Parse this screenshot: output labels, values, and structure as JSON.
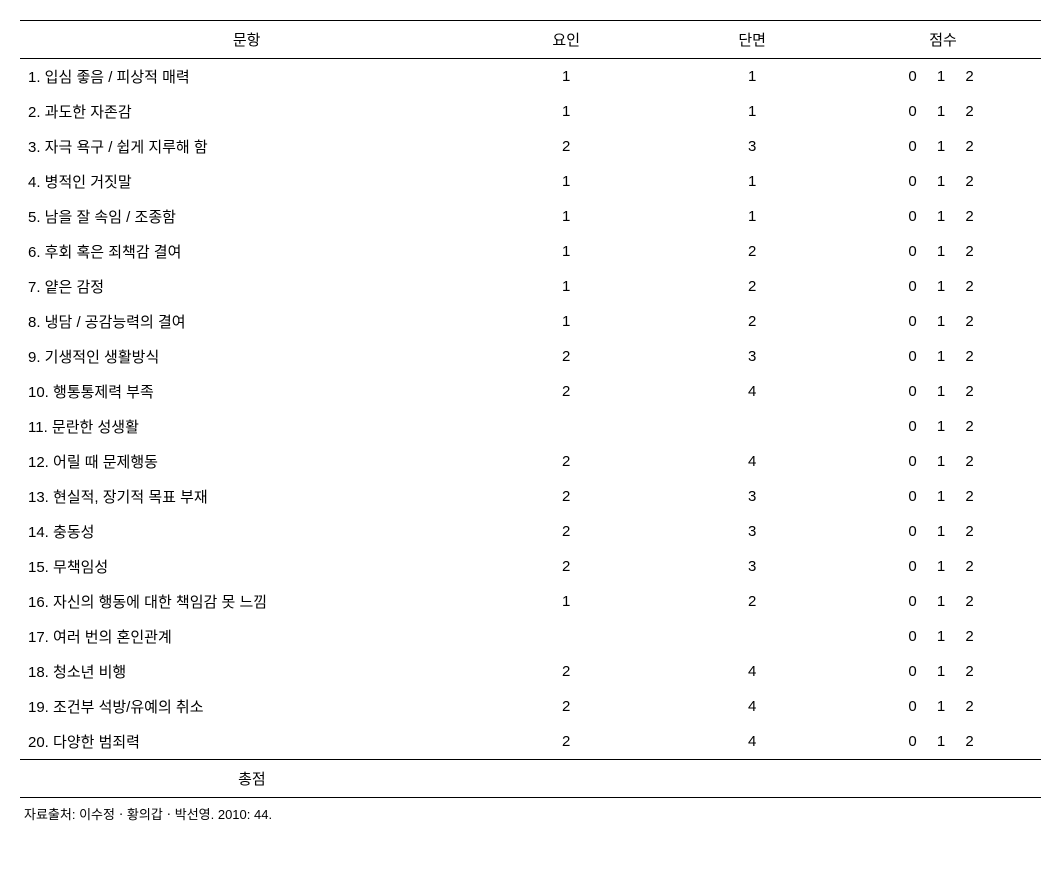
{
  "headers": {
    "item": "문항",
    "factor": "요인",
    "facet": "단면",
    "score": "점수"
  },
  "score_options": "0  1  2",
  "rows": [
    {
      "num": "1.",
      "label": "입심 좋음 / 피상적   매력",
      "factor": "1",
      "facet": "1"
    },
    {
      "num": "2.",
      "label": "과도한 자존감",
      "factor": "1",
      "facet": "1"
    },
    {
      "num": "3.",
      "label": "자극 욕구 / 쉽게   지루해 함",
      "factor": "2",
      "facet": "3"
    },
    {
      "num": "4.",
      "label": "병적인 거짓말",
      "factor": "1",
      "facet": "1"
    },
    {
      "num": "5.",
      "label": "남을 잘 속임 /   조종함",
      "factor": "1",
      "facet": "1"
    },
    {
      "num": "6.",
      "label": "후회 혹은 죄책감   결여",
      "factor": "1",
      "facet": "2"
    },
    {
      "num": "7.",
      "label": "얕은 감정",
      "factor": "1",
      "facet": "2"
    },
    {
      "num": "8.",
      "label": "냉담 / 공감능력의   결여",
      "factor": "1",
      "facet": "2"
    },
    {
      "num": "9.",
      "label": "기생적인 생활방식",
      "factor": "2",
      "facet": "3"
    },
    {
      "num": "10.",
      "label": "행통통제력 부족",
      "factor": "2",
      "facet": "4"
    },
    {
      "num": "11.",
      "label": "문란한 성생활",
      "factor": "",
      "facet": ""
    },
    {
      "num": "12.",
      "label": "어릴 때 문제행동",
      "factor": "2",
      "facet": "4"
    },
    {
      "num": "13.",
      "label": "현실적, 장기적   목표 부재",
      "factor": "2",
      "facet": "3"
    },
    {
      "num": "14.",
      "label": "충동성",
      "factor": "2",
      "facet": "3"
    },
    {
      "num": "15.",
      "label": "무책임성",
      "factor": "2",
      "facet": "3"
    },
    {
      "num": "16.",
      "label": "자신의 행동에 대한   책임감 못 느낌",
      "factor": "1",
      "facet": "2"
    },
    {
      "num": "17.",
      "label": "여러 번의 혼인관계",
      "factor": "",
      "facet": ""
    },
    {
      "num": "18.",
      "label": "청소년 비행",
      "factor": "2",
      "facet": "4"
    },
    {
      "num": "19.",
      "label": "조건부 석방/유예의   취소",
      "factor": "2",
      "facet": "4"
    },
    {
      "num": "20.",
      "label": "다양한 범죄력",
      "factor": "2",
      "facet": "4"
    }
  ],
  "total_label": "총점",
  "source": "자료출처: 이수정ㆍ황의갑ㆍ박선영. 2010: 44."
}
